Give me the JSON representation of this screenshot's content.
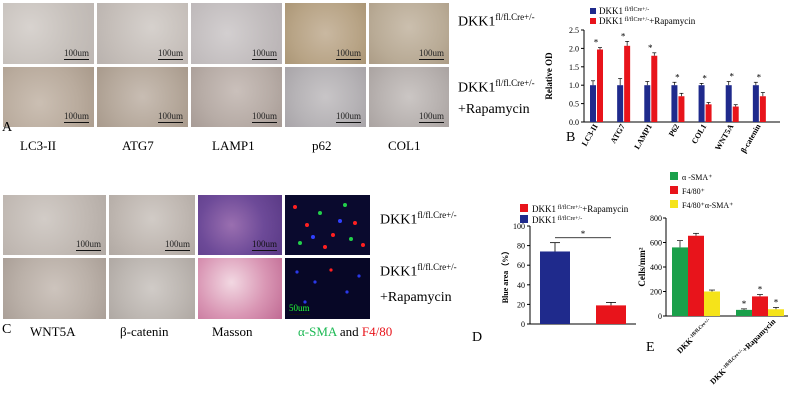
{
  "panels": {
    "A": "A",
    "B": "B",
    "C": "C",
    "D": "D",
    "E": "E"
  },
  "row_labels": {
    "top_a": {
      "main": "DKK1",
      "sup": "fl/fl.Cre+/-"
    },
    "bottom_a": {
      "main": "DKK1",
      "sup": "fl/fl.Cre+/-",
      "extra": "+Rapamycin"
    },
    "top_c": {
      "main": "DKK1",
      "sup": "fl/fl.Cre+/-"
    },
    "bottom_c": {
      "main": "DKK1",
      "sup": "fl/fl.Cre+/-",
      "extra": "+Rapamycin"
    }
  },
  "col_labels_a": [
    "LC3-II",
    "ATG7",
    "LAMP1",
    "p62",
    "COL1"
  ],
  "col_labels_c": {
    "c1": "WNT5A",
    "c2": "β-catenin",
    "c3": "Masson",
    "c4_green": "α-SMA",
    "c4_and": "and",
    "c4_red": "F4/80"
  },
  "scalebar": "100um",
  "scalebar_fluor": "50um",
  "colors": {
    "blue": "#1f2a8c",
    "red": "#e8141b",
    "green": "#1aa04a",
    "yellow": "#f5e31a",
    "green_text": "#1db954"
  },
  "chart_data": [
    {
      "type": "bar",
      "panel": "B",
      "ylabel": "Relative OD",
      "ylim": [
        0,
        2.5
      ],
      "yticks": [
        "0.0",
        "0.5",
        "1.0",
        "1.5",
        "2.0",
        "2.5"
      ],
      "categories": [
        "LC3-II",
        "ATG7",
        "LAMP1",
        "P62",
        "COL1",
        "WNT5A",
        "β-catenin"
      ],
      "series": [
        {
          "name": "DKK1 fl/flCre+/-",
          "values": [
            1.0,
            1.0,
            1.0,
            1.0,
            1.0,
            1.0,
            1.0
          ],
          "errors": [
            0.12,
            0.18,
            0.1,
            0.08,
            0.05,
            0.1,
            0.08
          ]
        },
        {
          "name": "DKK1 fl/flCre+/-+Rapamycin",
          "values": [
            1.97,
            2.07,
            1.8,
            0.7,
            0.48,
            0.42,
            0.7
          ],
          "errors": [
            0.05,
            0.12,
            0.08,
            0.08,
            0.05,
            0.05,
            0.1
          ]
        }
      ],
      "significance": [
        "*",
        "*",
        "*",
        "*",
        "*",
        "*",
        "*"
      ],
      "legend": {
        "s1": {
          "main": "DKK1",
          "sup": "fl/flCre+/-"
        },
        "s2": {
          "main": "DKK1",
          "sup": "fl/flCre+/-",
          "extra": "+Rapamycin"
        }
      }
    },
    {
      "type": "bar",
      "panel": "D",
      "ylabel": "Blue area（%）",
      "ylim": [
        0,
        100
      ],
      "yticks": [
        "0",
        "20",
        "40",
        "60",
        "80",
        "100"
      ],
      "series": [
        {
          "name": "DKK1 fl/flCre+/-",
          "values": [
            74
          ],
          "errors": [
            9
          ]
        },
        {
          "name": "DKK1 fl/flCre+/-+Rapamycin",
          "values": [
            19
          ],
          "errors": [
            3
          ]
        }
      ],
      "significance": "*",
      "legend": {
        "s1": {
          "main": "DKK1",
          "sup": "fl/flCre+/-",
          "extra": "+Rapamycin"
        },
        "s2": {
          "main": "DKK1",
          "sup": "fl/flCre+/-"
        }
      }
    },
    {
      "type": "bar",
      "panel": "E",
      "ylabel": "Cells/mm²",
      "ylim": [
        0,
        800
      ],
      "yticks": [
        "0",
        "200",
        "400",
        "600",
        "800"
      ],
      "categories": [
        {
          "main": "DKK",
          "sup": "-1fl/fl.Cre+/-"
        },
        {
          "main": "DKK",
          "sup": "-1fl/fl.Cre+/-",
          "extra": "+Rapamycin"
        }
      ],
      "series": [
        {
          "name": "α -SMA+",
          "values": [
            560,
            50
          ],
          "errors": [
            55,
            8
          ]
        },
        {
          "name": "F4/80+",
          "values": [
            655,
            160
          ],
          "errors": [
            20,
            15
          ]
        },
        {
          "name": "F4/80+α-SMA+",
          "values": [
            200,
            55
          ],
          "errors": [
            12,
            15
          ]
        }
      ],
      "significance_group2": [
        "*",
        "*",
        "*"
      ],
      "legend": [
        "α -SMA⁺",
        "F4/80⁺",
        "F4/80⁺α-SMA⁺"
      ]
    }
  ]
}
